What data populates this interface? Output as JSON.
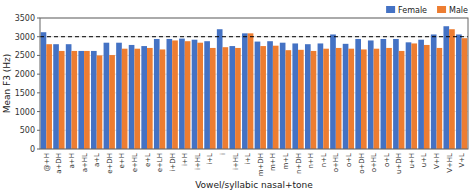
{
  "chart_data": {
    "type": "bar",
    "categories": [
      "@+H",
      "a+DH",
      "a+H",
      "a+HL",
      "a+L",
      "e+DH",
      "e+H",
      "e+HL",
      "e+L",
      "e+LH",
      "i+DH",
      "i+H",
      "i+HL",
      "i+L",
      "i",
      "i+HL",
      "i+L",
      "m+DH",
      "m+H",
      "m+L",
      "n+DH",
      "n+H",
      "n+L",
      "o+HL",
      "o+L",
      "o+DH",
      "o+HL",
      "o+L",
      "u+DH",
      "u+H",
      "u+L",
      "V+H",
      "V+HL",
      "V+L"
    ],
    "series": [
      {
        "name": "Female",
        "color": "#4472c4",
        "values": [
          3120,
          2800,
          2800,
          2620,
          2620,
          2840,
          2840,
          2780,
          2750,
          2940,
          2940,
          2950,
          2920,
          2880,
          3200,
          2750,
          3090,
          2870,
          2880,
          2840,
          2820,
          2800,
          2820,
          3060,
          2810,
          2940,
          2900,
          2940,
          2940,
          2850,
          2920,
          3060,
          3280,
          3060
        ]
      },
      {
        "name": "Male",
        "color": "#ed7d31",
        "values": [
          2800,
          2620,
          2620,
          2620,
          2500,
          2510,
          2680,
          2680,
          2700,
          2660,
          2900,
          2880,
          2840,
          2700,
          2720,
          2700,
          3090,
          2750,
          2760,
          2640,
          2650,
          2620,
          2680,
          2700,
          2680,
          2660,
          2680,
          2700,
          2620,
          2820,
          2780,
          2700,
          3200,
          2960
        ]
      }
    ],
    "ylabel": "Mean F3 (Hz)",
    "xlabel": "Vowel/syllabic nasal+tone",
    "ylim": [
      0,
      3500
    ],
    "yticks": [
      0,
      500,
      1000,
      1500,
      2000,
      2500,
      3000,
      3500
    ],
    "reference_line": 3000,
    "grid": true,
    "legend": "upper right"
  }
}
